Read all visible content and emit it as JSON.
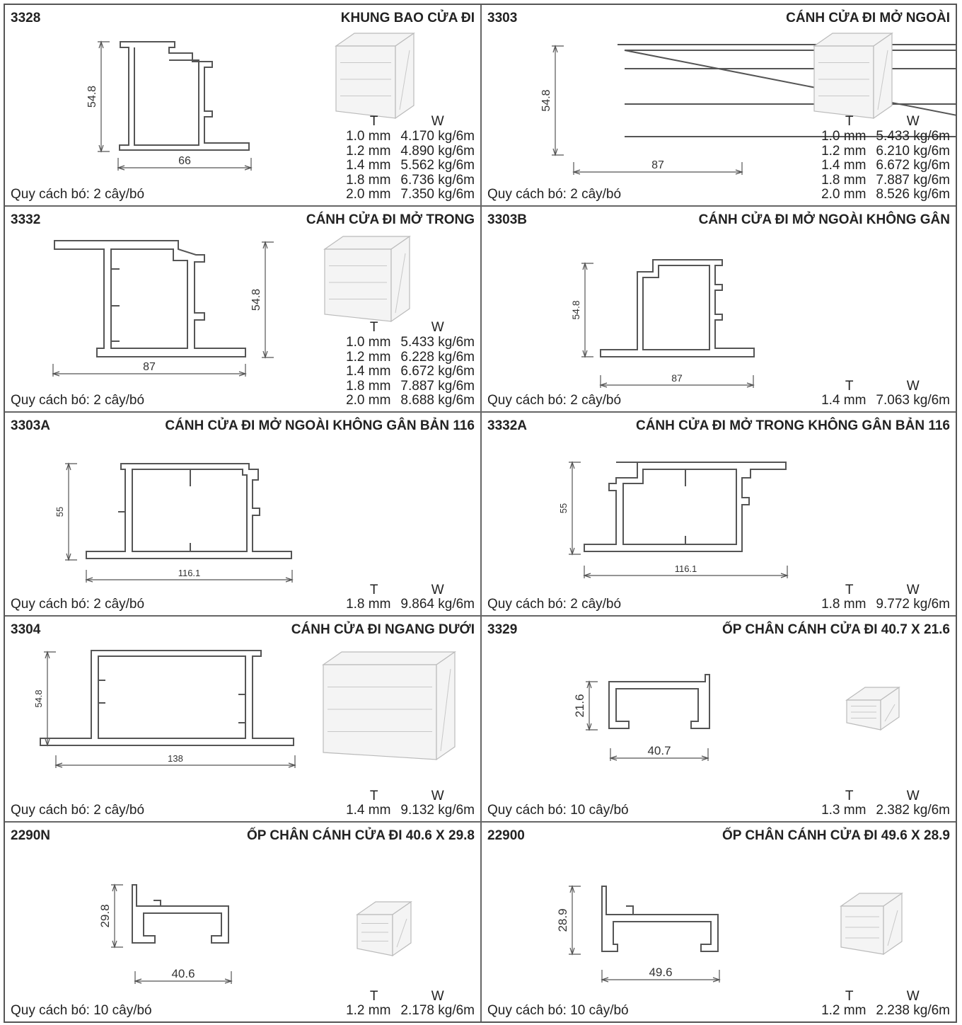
{
  "sheet": {
    "panels": [
      {
        "code": "3328",
        "title": "KHUNG BAO CỬA ĐI",
        "bundle": "Quy cách bó: 2 cây/bó",
        "t_label": "T",
        "w_label": "W",
        "specs": [
          {
            "t": "1.0 mm",
            "w": "4.170 kg/6m"
          },
          {
            "t": "1.2 mm",
            "w": "4.890 kg/6m"
          },
          {
            "t": "1.4 mm",
            "w": "5.562 kg/6m"
          },
          {
            "t": "1.8 mm",
            "w": "6.736 kg/6m"
          },
          {
            "t": "2.0 mm",
            "w": "7.350 kg/6m"
          }
        ],
        "dim_h": "54.8",
        "dim_w": "66"
      },
      {
        "code": "3303",
        "title": "CÁNH CỬA ĐI MỞ NGOÀI",
        "bundle": "Quy cách bó: 2 cây/bó",
        "t_label": "T",
        "w_label": "W",
        "specs": [
          {
            "t": "1.0 mm",
            "w": "5.433 kg/6m"
          },
          {
            "t": "1.2 mm",
            "w": "6.210 kg/6m"
          },
          {
            "t": "1.4 mm",
            "w": "6.672 kg/6m"
          },
          {
            "t": "1.8 mm",
            "w": "7.887 kg/6m"
          },
          {
            "t": "2.0 mm",
            "w": "8.526 kg/6m"
          }
        ],
        "dim_h": "54.8",
        "dim_w": "87"
      },
      {
        "code": "3332",
        "title": "CÁNH CỬA ĐI MỞ TRONG",
        "bundle": "Quy cách bó: 2 cây/bó",
        "t_label": "T",
        "w_label": "W",
        "specs": [
          {
            "t": "1.0 mm",
            "w": "5.433 kg/6m"
          },
          {
            "t": "1.2 mm",
            "w": "6.228 kg/6m"
          },
          {
            "t": "1.4 mm",
            "w": "6.672 kg/6m"
          },
          {
            "t": "1.8 mm",
            "w": "7.887 kg/6m"
          },
          {
            "t": "2.0 mm",
            "w": "8.688 kg/6m"
          }
        ],
        "dim_h": "54.8",
        "dim_w": "87"
      },
      {
        "code": "3303B",
        "title": "CÁNH CỬA ĐI MỞ NGOÀI KHÔNG GÂN",
        "bundle": "Quy cách bó: 2 cây/bó",
        "t_label": "T",
        "w_label": "W",
        "specs": [
          {
            "t": "1.4 mm",
            "w": "7.063 kg/6m"
          }
        ],
        "dim_h": "54.8",
        "dim_w": "87"
      },
      {
        "code": "3303A",
        "title": "CÁNH CỬA ĐI MỞ NGOÀI KHÔNG GÂN BẢN 116",
        "bundle": "Quy cách bó: 2 cây/bó",
        "t_label": "T",
        "w_label": "W",
        "specs": [
          {
            "t": "1.8 mm",
            "w": "9.864 kg/6m"
          }
        ],
        "dim_h": "55",
        "dim_w": "116.1"
      },
      {
        "code": "3332A",
        "title": "CÁNH CỬA ĐI MỞ TRONG KHÔNG GÂN BẢN 116",
        "bundle": "Quy cách bó: 2 cây/bó",
        "t_label": "T",
        "w_label": "W",
        "specs": [
          {
            "t": "1.8 mm",
            "w": "9.772 kg/6m"
          }
        ],
        "dim_h": "55",
        "dim_w": "116.1"
      },
      {
        "code": "3304",
        "title": "CÁNH CỬA ĐI NGANG DƯỚI",
        "bundle": "Quy cách bó: 2 cây/bó",
        "t_label": "T",
        "w_label": "W",
        "specs": [
          {
            "t": "1.4 mm",
            "w": "9.132 kg/6m"
          }
        ],
        "dim_h": "54.8",
        "dim_w": "138"
      },
      {
        "code": "3329",
        "title": "ỐP CHÂN CÁNH CỬA ĐI 40.7 X 21.6",
        "bundle": "Quy cách bó: 10 cây/bó",
        "t_label": "T",
        "w_label": "W",
        "specs": [
          {
            "t": "1.3 mm",
            "w": "2.382 kg/6m"
          }
        ],
        "dim_h": "21.6",
        "dim_w": "40.7"
      },
      {
        "code": "2290N",
        "title": "ỐP CHÂN CÁNH CỬA ĐI 40.6 X 29.8",
        "bundle": "Quy cách bó: 10 cây/bó",
        "t_label": "T",
        "w_label": "W",
        "specs": [
          {
            "t": "1.2 mm",
            "w": "2.178 kg/6m"
          }
        ],
        "dim_h": "29.8",
        "dim_w": "40.6"
      },
      {
        "code": "22900",
        "title": "ỐP CHÂN CÁNH CỬA ĐI 49.6 X 28.9",
        "bundle": "Quy cách bó: 10 cây/bó",
        "t_label": "T",
        "w_label": "W",
        "specs": [
          {
            "t": "1.2 mm",
            "w": "2.238 kg/6m"
          }
        ],
        "dim_h": "28.9",
        "dim_w": "49.6"
      }
    ]
  }
}
